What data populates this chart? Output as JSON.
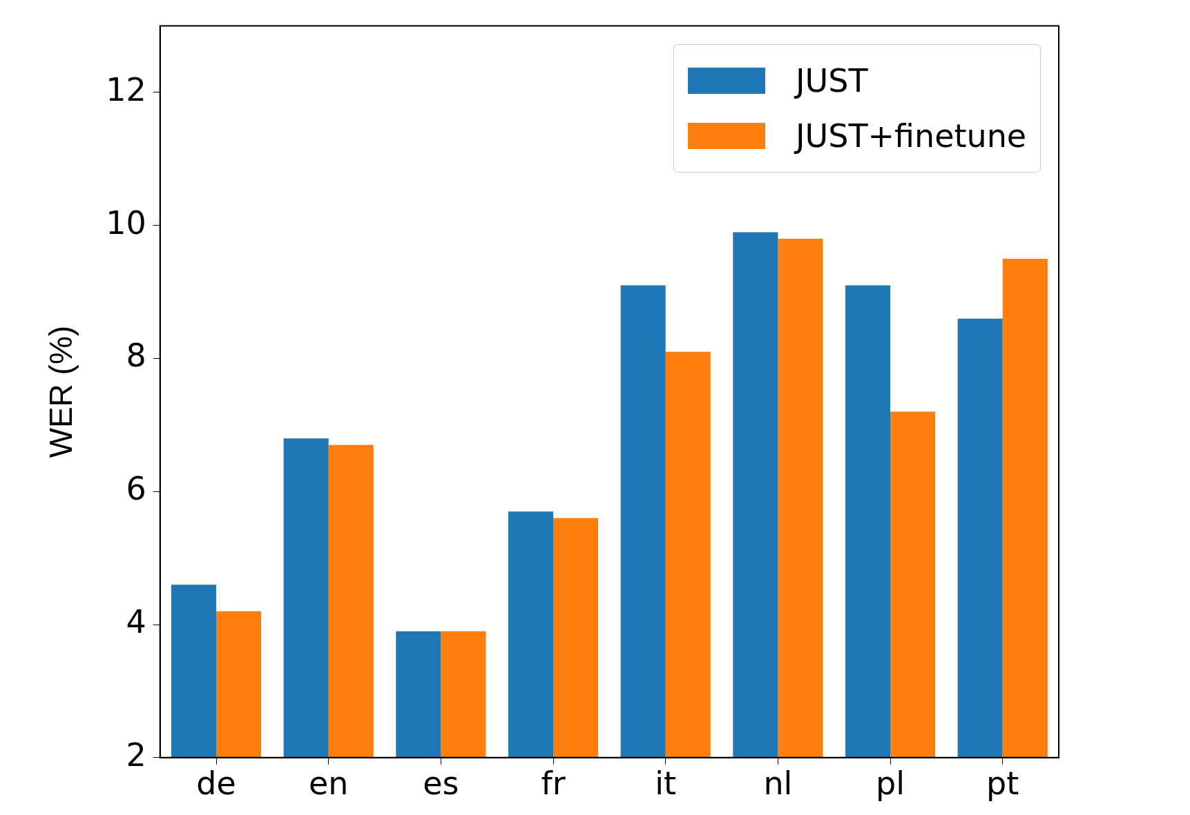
{
  "chart_data": {
    "type": "bar",
    "ylabel": "WER (%)",
    "categories": [
      "de",
      "en",
      "es",
      "fr",
      "it",
      "nl",
      "pl",
      "pt"
    ],
    "series": [
      {
        "name": "JUST",
        "color": "#1f77b4",
        "values": [
          4.6,
          6.8,
          3.9,
          5.7,
          9.1,
          9.9,
          9.1,
          8.6
        ]
      },
      {
        "name": "JUST+finetune",
        "color": "#ff7f0e",
        "values": [
          4.2,
          6.7,
          3.9,
          5.6,
          8.1,
          9.8,
          7.2,
          9.5
        ]
      }
    ],
    "ylim": [
      2,
      13
    ],
    "yticks": [
      2,
      4,
      6,
      8,
      10,
      12
    ],
    "grid": false,
    "legend": "top right"
  }
}
